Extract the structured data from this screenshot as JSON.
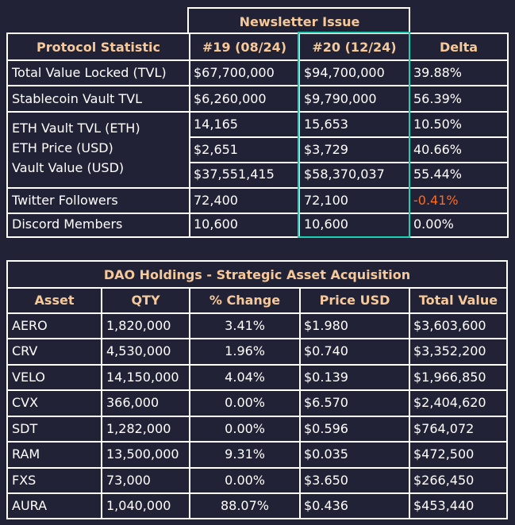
{
  "newsletter": {
    "issue_header": "Newsletter Issue",
    "columns": [
      "Protocol Statistic",
      "#19 (08/24)",
      "#20 (12/24)",
      "Delta"
    ],
    "rows": [
      {
        "label": "Total Value Locked (TVL)",
        "v19": "$67,700,000",
        "v20": "$94,700,000",
        "delta": "39.88%"
      },
      {
        "label": "Stablecoin Vault TVL",
        "v19": "$6,260,000",
        "v20": "$9,790,000",
        "delta": "56.39%"
      },
      {
        "label": "ETH Vault TVL (ETH)",
        "v19": "14,165",
        "v20": "15,653",
        "delta": "10.50%"
      },
      {
        "label": "ETH Price (USD)",
        "v19": "$2,651",
        "v20": "$3,729",
        "delta": "40.66%"
      },
      {
        "label": "Vault Value (USD)",
        "v19": "$37,551,415",
        "v20": "$58,370,037",
        "delta": "55.44%"
      },
      {
        "label": "Twitter Followers",
        "v19": "72,400",
        "v20": "72,100",
        "delta": "-0.41%"
      },
      {
        "label": "Discord Members",
        "v19": "10,600",
        "v20": "10,600",
        "delta": "0.00%"
      }
    ],
    "colors": {
      "header_text": "#f6c99a",
      "highlight_border": "#1fd1b3",
      "negative": "#ff6a1f"
    }
  },
  "holdings": {
    "title": "DAO Holdings - Strategic Asset Acquisition",
    "columns": [
      "Asset",
      "QTY",
      "% Change",
      "Price USD",
      "Total Value"
    ],
    "rows": [
      {
        "asset": "AERO",
        "qty": "1,820,000",
        "change": "3.41%",
        "price": "$1.980",
        "total": "$3,603,600"
      },
      {
        "asset": "CRV",
        "qty": "4,530,000",
        "change": "1.96%",
        "price": "$0.740",
        "total": "$3,352,200"
      },
      {
        "asset": "VELO",
        "qty": "14,150,000",
        "change": "4.04%",
        "price": "$0.139",
        "total": "$1,966,850"
      },
      {
        "asset": "CVX",
        "qty": "366,000",
        "change": "0.00%",
        "price": "$6.570",
        "total": "$2,404,620"
      },
      {
        "asset": "SDT",
        "qty": "1,282,000",
        "change": "0.00%",
        "price": "$0.596",
        "total": "$764,072"
      },
      {
        "asset": "RAM",
        "qty": "13,500,000",
        "change": "9.31%",
        "price": "$0.035",
        "total": "$472,500"
      },
      {
        "asset": "FXS",
        "qty": "73,000",
        "change": "0.00%",
        "price": "$3.650",
        "total": "$266,450"
      },
      {
        "asset": "AURA",
        "qty": "1,040,000",
        "change": "88.07%",
        "price": "$0.436",
        "total": "$453,440"
      }
    ]
  }
}
